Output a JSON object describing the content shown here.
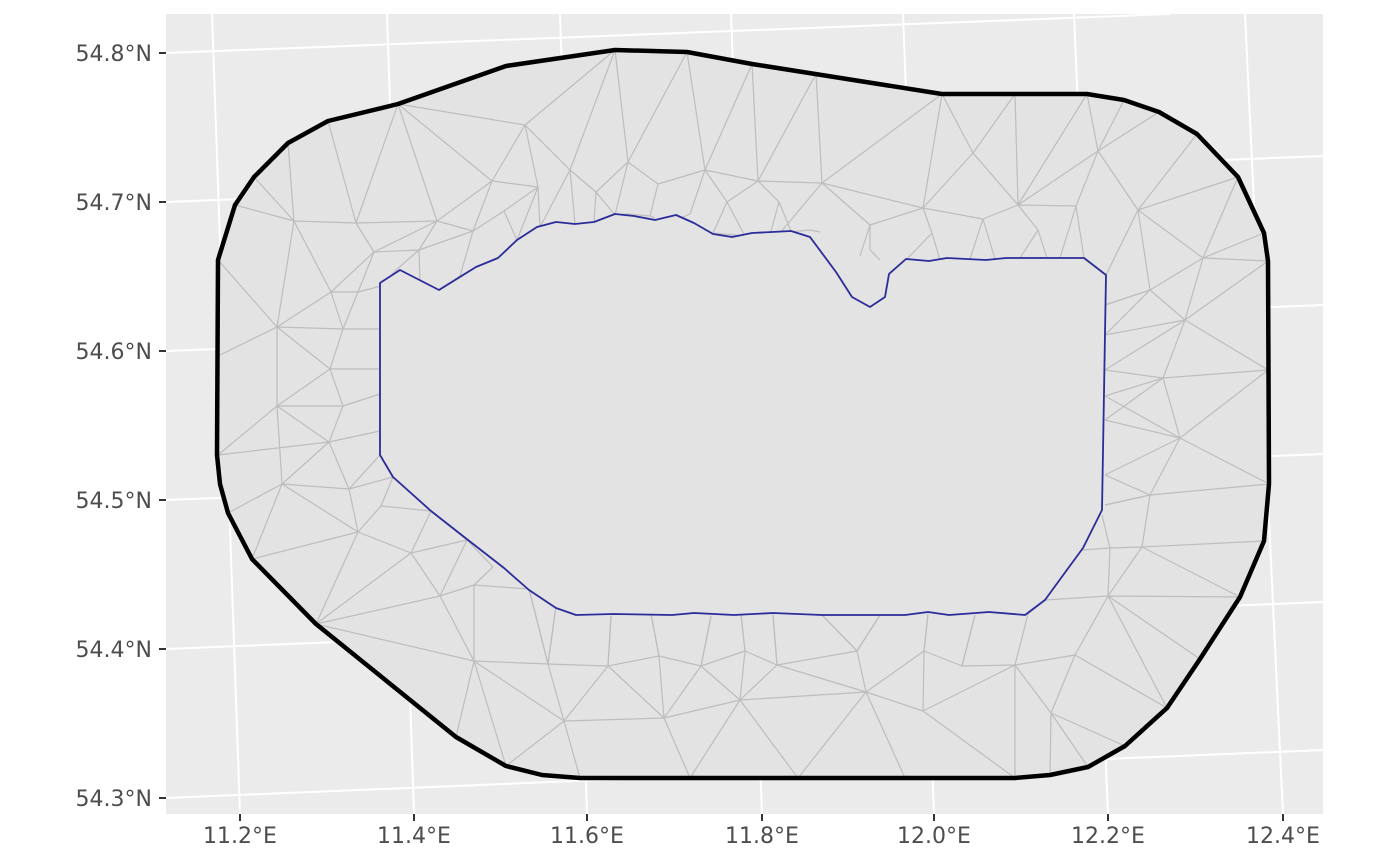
{
  "map": {
    "projection": "transverse mercator, rotated graticule",
    "panel_background": "#ebebeb",
    "grid_color": "#ffffff",
    "x_axis": {
      "ticks": [
        11.2,
        11.4,
        11.6,
        11.8,
        12.0,
        12.2,
        12.4
      ],
      "tick_labels": [
        "11.2°E",
        "11.4°E",
        "11.6°E",
        "11.8°E",
        "12.0°E",
        "12.2°E",
        "12.4°E"
      ]
    },
    "y_axis": {
      "ticks": [
        54.3,
        54.4,
        54.5,
        54.6,
        54.7,
        54.8
      ],
      "tick_labels": [
        "54.3°N",
        "54.4°N",
        "54.5°N",
        "54.6°N",
        "54.7°N",
        "54.8°N"
      ]
    },
    "outer_boundary": {
      "color": "#000000",
      "fill": "#e3e3e3",
      "description": "outer hull of the mesh"
    },
    "inner_boundary": {
      "color": "#2b2b9a",
      "fill": "#e3e3e3",
      "description": "inner domain boundary"
    },
    "mesh": {
      "color": "#bdbdbd",
      "description": "triangulation edges between inner and outer boundaries"
    }
  }
}
